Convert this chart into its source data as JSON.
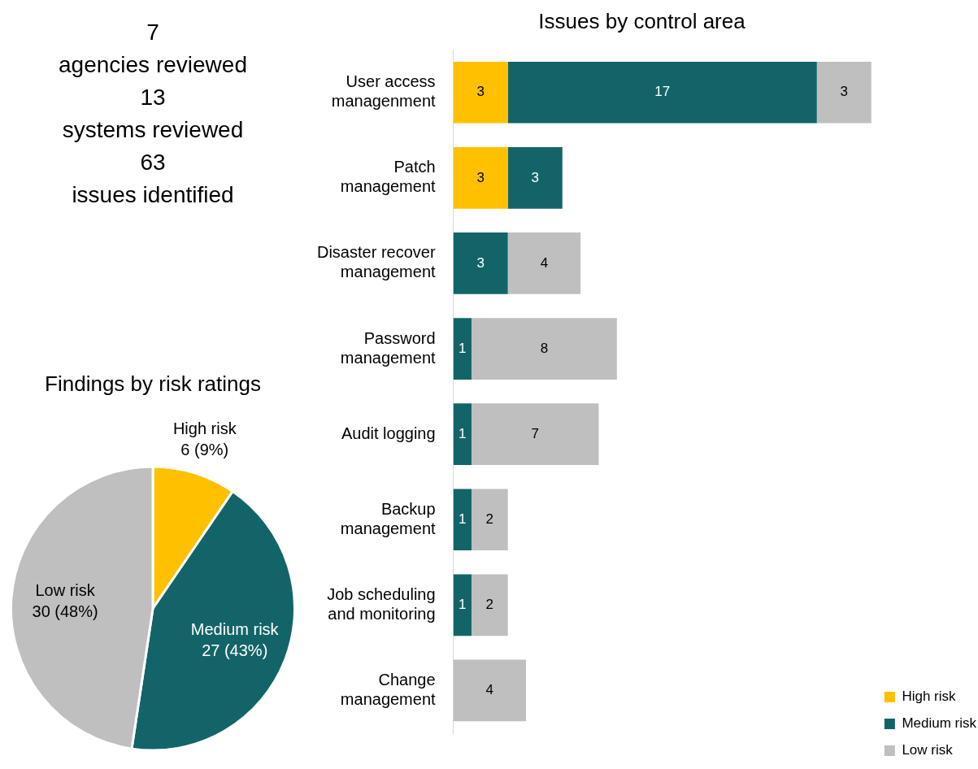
{
  "chart_data": [
    {
      "type": "other",
      "annotations": [
        "7",
        "agencies reviewed",
        "13",
        "systems reviewed",
        "63",
        "issues identified"
      ]
    },
    {
      "type": "pie",
      "title": "Findings by risk ratings",
      "categories": [
        "High risk",
        "Medium risk",
        "Low risk"
      ],
      "values": [
        6,
        27,
        30
      ],
      "colors": [
        "#ffc000",
        "#136468",
        "#bfbfbf"
      ],
      "value_labels": [
        "6 (9%)",
        "27 (43%)",
        "30 (48%)"
      ],
      "legend": false
    },
    {
      "type": "bar",
      "title": "Issues by control area",
      "orientation": "horizontal",
      "stacked": true,
      "grid": false,
      "data_labels": true,
      "legend": "bottom right",
      "categories": [
        "User access managenment",
        "Patch management",
        "Disaster recover management",
        "Password management",
        "Audit logging",
        "Backup management",
        "Job scheduling and monitoring",
        "Change management"
      ],
      "series": [
        {
          "name": "High risk",
          "color": "#ffc000",
          "values": [
            3,
            3,
            null,
            null,
            null,
            null,
            null,
            null
          ]
        },
        {
          "name": "Medium risk",
          "color": "#136468",
          "values": [
            17,
            3,
            3,
            1,
            1,
            1,
            1,
            null
          ]
        },
        {
          "name": "Low risk",
          "color": "#bfbfbf",
          "values": [
            3,
            null,
            4,
            8,
            7,
            2,
            2,
            4
          ]
        }
      ]
    }
  ]
}
